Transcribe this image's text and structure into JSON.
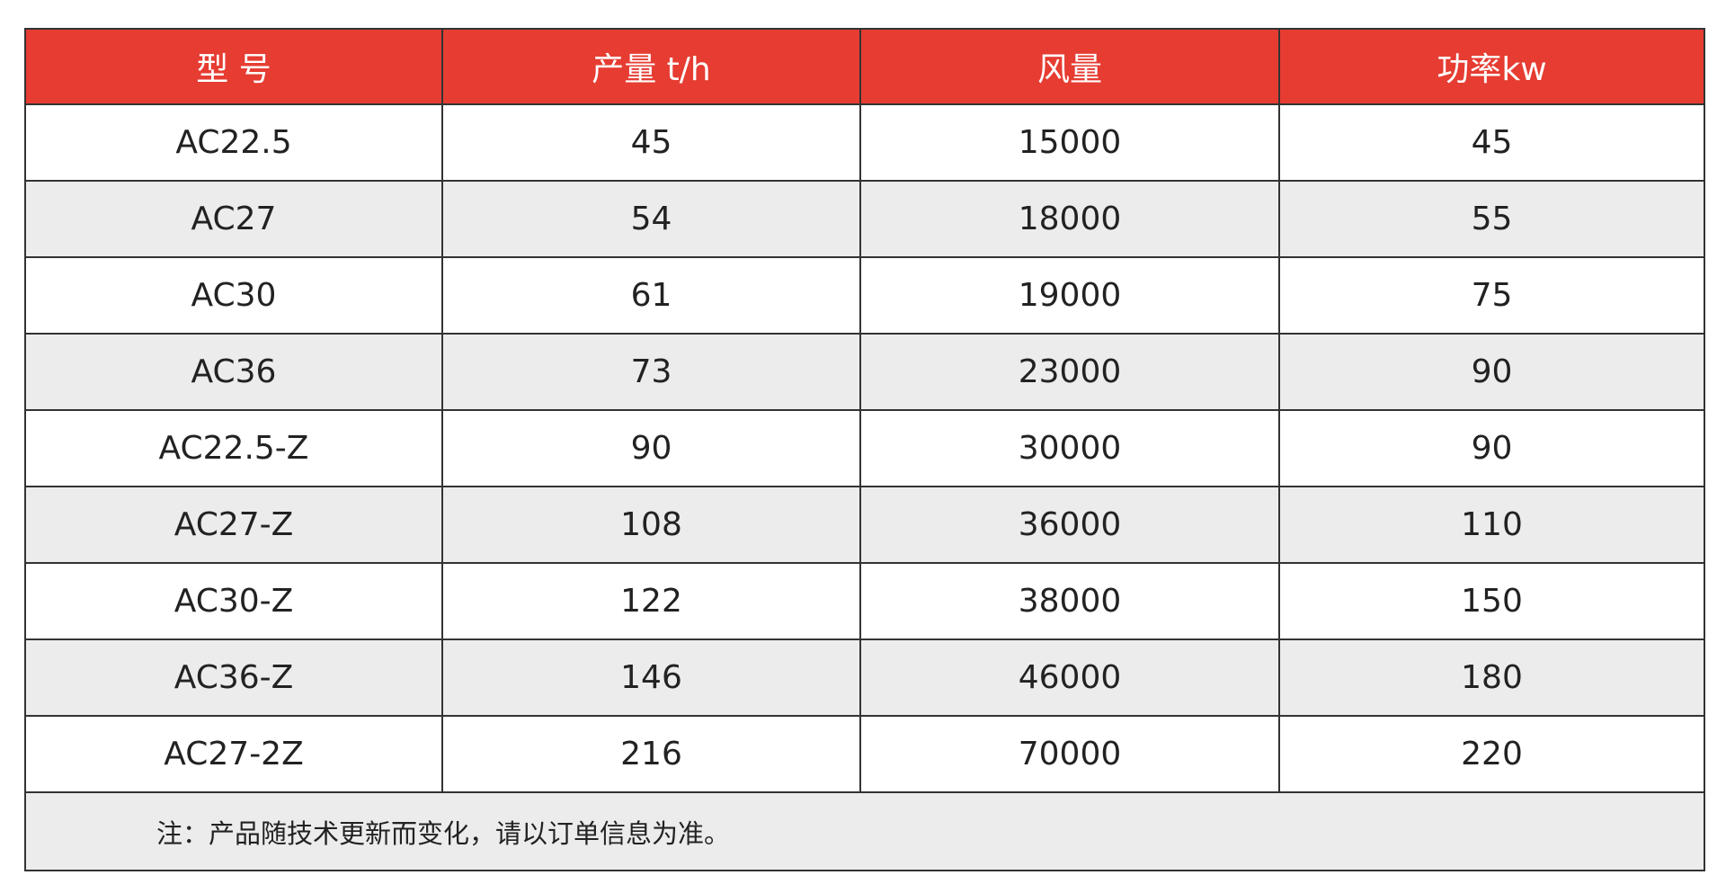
{
  "table": {
    "header": [
      "型 号",
      "产量 t/h",
      "风量",
      "功率kw"
    ],
    "rows": [
      [
        "AC22.5",
        45,
        15000,
        45
      ],
      [
        "AC27",
        54,
        18000,
        55
      ],
      [
        "AC30",
        61,
        19000,
        75
      ],
      [
        "AC36",
        73,
        23000,
        90
      ],
      [
        "AC22.5-Z",
        90,
        30000,
        90
      ],
      [
        "AC27-Z",
        108,
        36000,
        110
      ],
      [
        "AC30-Z",
        122,
        38000,
        150
      ],
      [
        "AC36-Z",
        146,
        46000,
        180
      ],
      [
        "AC27-2Z",
        216,
        70000,
        220
      ]
    ],
    "note": "注：产品随技术更新而变化，请以订单信息为准。"
  }
}
